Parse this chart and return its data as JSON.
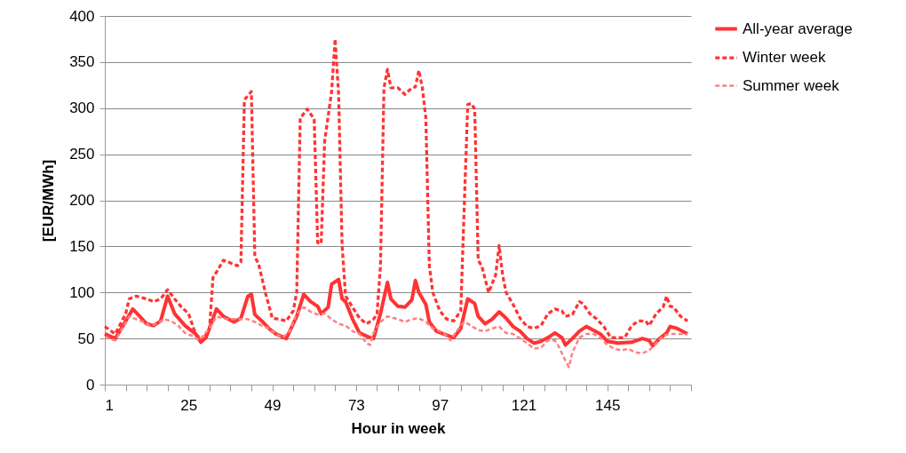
{
  "chart_data": {
    "type": "line",
    "xlabel": "Hour in week",
    "ylabel": "[EUR/MWh]",
    "xlim": [
      1,
      169
    ],
    "ylim": [
      0,
      400
    ],
    "yticks": [
      0,
      50,
      100,
      150,
      200,
      250,
      300,
      350,
      400
    ],
    "xticks": [
      1,
      {
        "value": 7,
        "label": null
      },
      {
        "value": 13,
        "label": null
      },
      {
        "value": 19,
        "label": null
      },
      25,
      {
        "value": 31,
        "label": null
      },
      {
        "value": 37,
        "label": null
      },
      {
        "value": 43,
        "label": null
      },
      49,
      {
        "value": 55,
        "label": null
      },
      {
        "value": 61,
        "label": null
      },
      {
        "value": 67,
        "label": null
      },
      73,
      {
        "value": 79,
        "label": null
      },
      {
        "value": 85,
        "label": null
      },
      {
        "value": 91,
        "label": null
      },
      97,
      {
        "value": 103,
        "label": null
      },
      {
        "value": 109,
        "label": null
      },
      {
        "value": 115,
        "label": null
      },
      121,
      {
        "value": 127,
        "label": null
      },
      {
        "value": 133,
        "label": null
      },
      {
        "value": 139,
        "label": null
      },
      145,
      {
        "value": 151,
        "label": null
      },
      {
        "value": 157,
        "label": null
      },
      {
        "value": 163,
        "label": null
      },
      {
        "value": 169,
        "label": null
      }
    ],
    "grid": "y",
    "legend": "right",
    "marker": "none",
    "series": [
      {
        "name": "All-year average",
        "color": "#ff3333",
        "line_style": "solid",
        "x": [
          1,
          4,
          7,
          9,
          11,
          13,
          15,
          17,
          19,
          21,
          24,
          27,
          28.5,
          30,
          33,
          35,
          38,
          40,
          42,
          43,
          44,
          46,
          48,
          50,
          53,
          56,
          58,
          60,
          62,
          63,
          65,
          66,
          68,
          69,
          70,
          72,
          74,
          77,
          78,
          80,
          82,
          83,
          85,
          87,
          89,
          90,
          91,
          93,
          94,
          96,
          98,
          101,
          103,
          105,
          107,
          108,
          110,
          112,
          114,
          116,
          118,
          120,
          122,
          124,
          126,
          128,
          130,
          132,
          133,
          135,
          137,
          139,
          141,
          143,
          145,
          148,
          152,
          155,
          157,
          158,
          160,
          162,
          163,
          165,
          168
        ],
        "values": [
          55,
          50,
          69,
          82,
          74,
          66,
          64,
          69,
          96,
          77,
          64,
          55,
          46,
          51,
          82,
          74,
          68,
          72,
          96,
          98,
          76,
          69,
          61,
          55,
          50,
          74,
          98,
          90,
          85,
          77,
          84,
          109,
          114,
          93,
          90,
          71,
          56,
          51,
          50,
          77,
          111,
          93,
          85,
          84,
          92,
          113,
          100,
          87,
          68,
          58,
          55,
          51,
          61,
          93,
          88,
          74,
          66,
          71,
          79,
          72,
          63,
          58,
          50,
          45,
          47,
          51,
          56,
          51,
          43,
          50,
          58,
          63,
          59,
          55,
          47,
          45,
          46,
          50,
          48,
          42,
          50,
          56,
          63,
          61,
          55
        ]
      },
      {
        "name": "Winter week",
        "color": "#ff3333",
        "line_style": "dashed",
        "x": [
          1,
          4,
          7,
          8,
          10,
          13,
          15,
          17,
          19,
          21,
          23,
          25,
          27,
          29,
          31,
          32,
          33,
          35,
          37,
          39,
          40,
          41,
          43,
          44,
          45,
          47,
          49,
          51,
          53,
          55,
          56,
          57,
          59,
          61,
          62,
          63,
          64,
          66,
          67,
          68,
          69,
          70,
          72,
          74,
          76,
          78,
          79,
          80,
          81,
          82,
          83,
          85,
          87,
          89,
          90,
          91,
          92,
          93,
          94,
          95,
          97,
          99,
          101,
          103,
          104,
          105,
          106,
          107,
          108,
          109,
          111,
          113,
          114,
          115,
          116,
          118,
          120,
          122,
          124,
          126,
          128,
          130,
          132,
          133,
          135,
          137,
          138,
          140,
          142,
          144,
          146,
          148,
          150,
          152,
          154,
          156,
          157,
          159,
          161,
          162,
          163,
          164,
          166,
          168
        ],
        "values": [
          63,
          55,
          77,
          93,
          96,
          93,
          90,
          93,
          103,
          93,
          84,
          77,
          55,
          48,
          61,
          116,
          122,
          135,
          132,
          129,
          133,
          309,
          318,
          138,
          132,
          100,
          72,
          71,
          69,
          80,
          100,
          289,
          299,
          288,
          154,
          153,
          264,
          318,
          375,
          315,
          151,
          96,
          84,
          72,
          66,
          71,
          76,
          129,
          322,
          342,
          322,
          322,
          315,
          322,
          323,
          341,
          322,
          289,
          129,
          100,
          80,
          71,
          69,
          80,
          193,
          304,
          305,
          299,
          135,
          129,
          100,
          119,
          151,
          119,
          100,
          87,
          72,
          63,
          61,
          64,
          77,
          82,
          80,
          74,
          76,
          90,
          88,
          77,
          71,
          63,
          51,
          51,
          51,
          64,
          69,
          69,
          64,
          77,
          84,
          96,
          85,
          84,
          74,
          69
        ]
      },
      {
        "name": "Summer week",
        "color": "#ff8080",
        "line_style": "dashed",
        "x": [
          1,
          4,
          6,
          8,
          10,
          12,
          14,
          16,
          18,
          20,
          22,
          24,
          26,
          28,
          31,
          33,
          36,
          39,
          42,
          44,
          46,
          48,
          50,
          52,
          54,
          56,
          58,
          60,
          62,
          64,
          66,
          68,
          70,
          72,
          74,
          76,
          77,
          78,
          80,
          82,
          84,
          85,
          87,
          89,
          91,
          93,
          95,
          97,
          99,
          100,
          102,
          104,
          106,
          108,
          110,
          112,
          114,
          116,
          118,
          120,
          122,
          124,
          126,
          128,
          130,
          131,
          133,
          134,
          135,
          137,
          139,
          141,
          143,
          145,
          147,
          149,
          151,
          153,
          155,
          157,
          159,
          161,
          163,
          165,
          168
        ],
        "values": [
          51,
          48,
          61,
          74,
          71,
          68,
          64,
          66,
          71,
          69,
          64,
          56,
          53,
          48,
          61,
          74,
          71,
          71,
          71,
          68,
          64,
          61,
          55,
          51,
          58,
          77,
          84,
          79,
          76,
          77,
          71,
          66,
          64,
          58,
          55,
          45,
          43,
          56,
          68,
          74,
          72,
          71,
          68,
          71,
          72,
          68,
          61,
          58,
          53,
          48,
          59,
          68,
          64,
          59,
          58,
          61,
          63,
          56,
          55,
          50,
          45,
          39,
          40,
          48,
          48,
          42,
          26,
          19,
          35,
          51,
          55,
          55,
          51,
          43,
          39,
          37,
          39,
          35,
          34,
          37,
          45,
          53,
          55,
          55,
          55
        ]
      }
    ]
  }
}
